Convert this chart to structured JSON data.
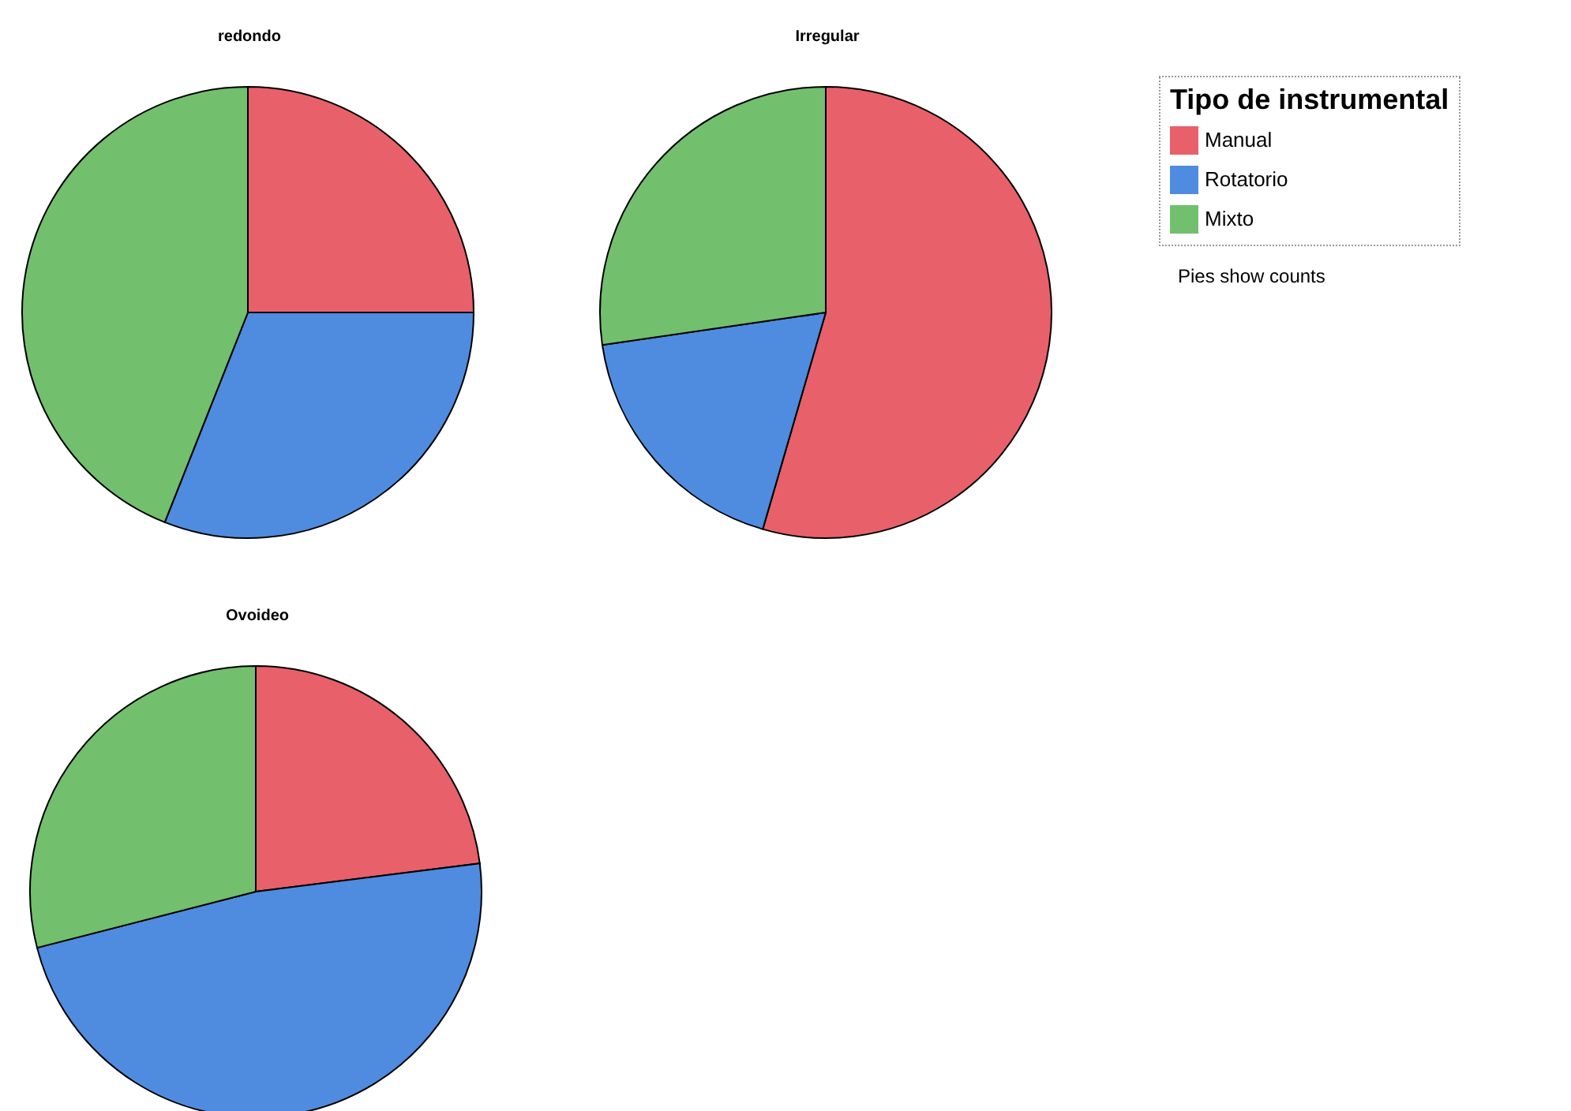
{
  "chart_data": [
    {
      "type": "pie",
      "title": "redondo",
      "categories": [
        null,
        null,
        null
      ],
      "values": [
        25,
        31,
        44
      ],
      "colors": [
        "#e8606a",
        "#4f8ce0",
        "#72bf6e"
      ]
    },
    {
      "type": "pie",
      "title": "Irregular",
      "categories": [
        "Manual",
        "Rotatorio",
        "Mixto"
      ],
      "values": [
        54.5,
        18.2,
        27.3
      ],
      "colors": [
        "#e8606a",
        "#4f8ce0",
        "#72bf6e"
      ],
      "legend": "right",
      "legend_title": "Tipo de instrumental",
      "annotations": [
        "Pies show counts"
      ]
    },
    {
      "type": "pie",
      "title": "Ovoideo",
      "categories": [
        null,
        null,
        null
      ],
      "values": [
        23,
        48,
        29
      ],
      "colors": [
        "#e8606a",
        "#4f8ce0",
        "#72bf6e"
      ]
    }
  ]
}
